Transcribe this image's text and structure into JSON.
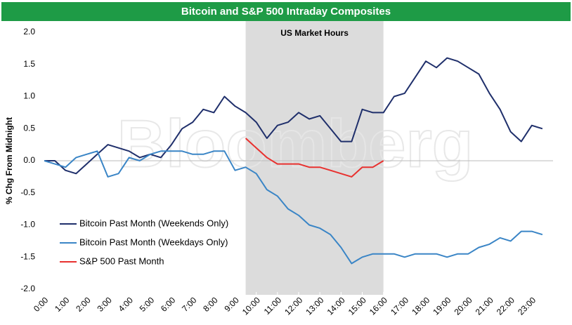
{
  "chart_data": {
    "type": "line",
    "title": "Bitcoin and S&P 500 Intraday Composites",
    "ylabel": "% Chg From Midnight",
    "annotation": "US Market Hours",
    "watermark": "Bloomberg",
    "shaded_region": [
      9.5,
      16
    ],
    "x": [
      0,
      0.5,
      1,
      1.5,
      2,
      2.5,
      3,
      3.5,
      4,
      4.5,
      5,
      5.5,
      6,
      6.5,
      7,
      7.5,
      8,
      8.5,
      9,
      9.5,
      10,
      10.5,
      11,
      11.5,
      12,
      12.5,
      13,
      13.5,
      14,
      14.5,
      15,
      15.5,
      16,
      16.5,
      17,
      17.5,
      18,
      18.5,
      19,
      19.5,
      20,
      20.5,
      21,
      21.5,
      22,
      22.5,
      23,
      23.5
    ],
    "series": [
      {
        "name": "Bitcoin Past Month (Weekends Only)",
        "color": "#1f2f6b",
        "values": [
          0,
          0.0,
          -0.15,
          -0.2,
          -0.05,
          0.1,
          0.25,
          0.2,
          0.15,
          0.05,
          0.1,
          0.05,
          0.25,
          0.5,
          0.6,
          0.8,
          0.75,
          1.0,
          0.85,
          0.75,
          0.6,
          0.35,
          0.55,
          0.6,
          0.75,
          0.65,
          0.7,
          0.5,
          0.3,
          0.3,
          0.8,
          0.75,
          0.75,
          1.0,
          1.05,
          1.3,
          1.55,
          1.45,
          1.6,
          1.55,
          1.45,
          1.35,
          1.05,
          0.8,
          0.45,
          0.3,
          0.55,
          0.5
        ]
      },
      {
        "name": "Bitcoin Past Month (Weekdays Only)",
        "color": "#3a85c6",
        "values": [
          0,
          -0.05,
          -0.1,
          0.05,
          0.1,
          0.15,
          -0.25,
          -0.2,
          0.05,
          0.0,
          0.1,
          0.15,
          0.15,
          0.15,
          0.1,
          0.1,
          0.15,
          0.15,
          -0.15,
          -0.1,
          -0.2,
          -0.45,
          -0.55,
          -0.75,
          -0.85,
          -1.0,
          -1.05,
          -1.15,
          -1.35,
          -1.6,
          -1.5,
          -1.45,
          -1.45,
          -1.45,
          -1.5,
          -1.45,
          -1.45,
          -1.45,
          -1.5,
          -1.45,
          -1.45,
          -1.35,
          -1.3,
          -1.2,
          -1.25,
          -1.1,
          -1.1,
          -1.15
        ]
      },
      {
        "name": "S&P 500 Past Month",
        "color": "#e8312f",
        "values": [
          null,
          null,
          null,
          null,
          null,
          null,
          null,
          null,
          null,
          null,
          null,
          null,
          null,
          null,
          null,
          null,
          null,
          null,
          null,
          0.35,
          0.2,
          0.05,
          -0.05,
          -0.05,
          -0.05,
          -0.1,
          -0.1,
          -0.15,
          -0.2,
          -0.25,
          -0.1,
          -0.1,
          0.0,
          null,
          null,
          null,
          null,
          null,
          null,
          null,
          null,
          null,
          null,
          null,
          null,
          null,
          null,
          null
        ]
      }
    ],
    "xlim": [
      0,
      24
    ],
    "xticks": [
      {
        "value": 0,
        "label": "0:00"
      },
      {
        "value": 1,
        "label": "1:00"
      },
      {
        "value": 2,
        "label": "2:00"
      },
      {
        "value": 3,
        "label": "3:00"
      },
      {
        "value": 4,
        "label": "4:00"
      },
      {
        "value": 5,
        "label": "5:00"
      },
      {
        "value": 6,
        "label": "6:00"
      },
      {
        "value": 7,
        "label": "7:00"
      },
      {
        "value": 8,
        "label": "8:00"
      },
      {
        "value": 9,
        "label": "9:00"
      },
      {
        "value": 10,
        "label": "10:00"
      },
      {
        "value": 11,
        "label": "11:00"
      },
      {
        "value": 12,
        "label": "12:00"
      },
      {
        "value": 13,
        "label": "13:00"
      },
      {
        "value": 14,
        "label": "14:00"
      },
      {
        "value": 15,
        "label": "15:00"
      },
      {
        "value": 16,
        "label": "16:00"
      },
      {
        "value": 17,
        "label": "17:00"
      },
      {
        "value": 18,
        "label": "18:00"
      },
      {
        "value": 19,
        "label": "19:00"
      },
      {
        "value": 20,
        "label": "20:00"
      },
      {
        "value": 21,
        "label": "21:00"
      },
      {
        "value": 22,
        "label": "22:00"
      },
      {
        "value": 23,
        "label": "23:00"
      }
    ],
    "ylim": [
      -2,
      2
    ],
    "yticks": [
      {
        "value": 2,
        "label": "2.0"
      },
      1.5,
      {
        "value": 1,
        "label": "1.0"
      },
      0.5,
      {
        "value": 0,
        "label": "0.0"
      },
      -0.5,
      {
        "value": -1,
        "label": "-1.0"
      },
      -1.5,
      {
        "value": -2,
        "label": "-2.0"
      }
    ],
    "legend": "lower-left"
  }
}
